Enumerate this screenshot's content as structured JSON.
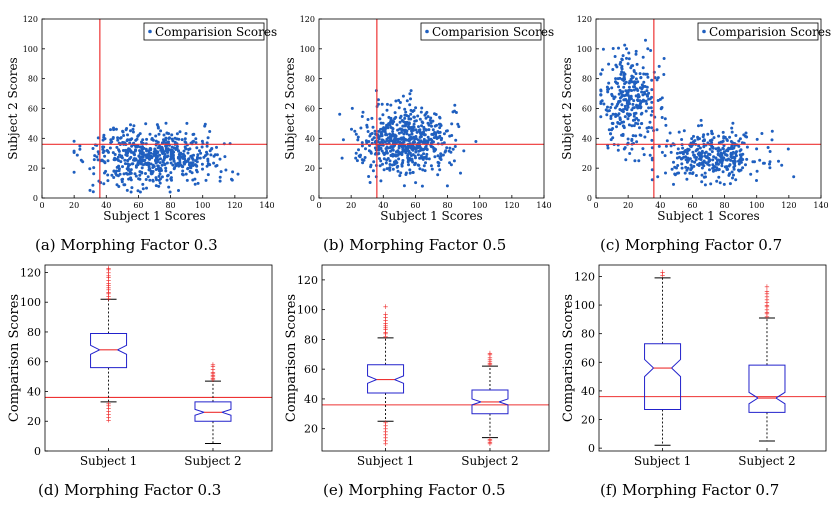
{
  "chart_data": [
    {
      "type": "scatter",
      "caption": "(a) Morphing Factor 0.3",
      "xlabel": "Subject 1 Scores",
      "ylabel": "Subject 2 Scores",
      "legend": "Comparision Scores",
      "legend_position": "top-right",
      "xlim": [
        0,
        140
      ],
      "ylim": [
        0,
        120
      ],
      "xticks": [
        0,
        20,
        40,
        60,
        80,
        100,
        120,
        140
      ],
      "yticks": [
        0,
        20,
        40,
        60,
        80,
        100,
        120
      ],
      "threshold_x": 36,
      "threshold_y": 36,
      "point_color": "#1f5fbf",
      "threshold_color": "#ee3333",
      "clusters": [
        {
          "n": 620,
          "mean_x": 68,
          "sd_x": 20,
          "mean_y": 28,
          "sd_y": 9,
          "min_x": 20,
          "max_x": 125,
          "min_y": 4,
          "max_y": 58
        }
      ]
    },
    {
      "type": "scatter",
      "caption": "(b) Morphing Factor 0.5",
      "xlabel": "Subject 1 Scores",
      "ylabel": "Subject 2 Scores",
      "legend": "Comparision Scores",
      "legend_position": "top-right",
      "xlim": [
        0,
        140
      ],
      "ylim": [
        0,
        120
      ],
      "xticks": [
        0,
        20,
        40,
        60,
        80,
        100,
        120,
        140
      ],
      "yticks": [
        0,
        20,
        40,
        60,
        80,
        100,
        120
      ],
      "threshold_x": 36,
      "threshold_y": 36,
      "point_color": "#1f5fbf",
      "threshold_color": "#ee3333",
      "clusters": [
        {
          "n": 620,
          "mean_x": 54,
          "sd_x": 14,
          "mean_y": 38,
          "sd_y": 11,
          "min_x": 10,
          "max_x": 102,
          "min_y": 8,
          "max_y": 72
        }
      ]
    },
    {
      "type": "scatter",
      "caption": "(c) Morphing Factor 0.7",
      "xlabel": "Subject 1 Scores",
      "ylabel": "Subject 2 Scores",
      "legend": "Comparision Scores",
      "legend_position": "top-right",
      "xlim": [
        0,
        140
      ],
      "ylim": [
        0,
        120
      ],
      "xticks": [
        0,
        20,
        40,
        60,
        80,
        100,
        120,
        140
      ],
      "yticks": [
        0,
        20,
        40,
        60,
        80,
        100,
        120
      ],
      "threshold_x": 36,
      "threshold_y": 36,
      "point_color": "#1f5fbf",
      "threshold_color": "#ee3333",
      "clusters": [
        {
          "n": 330,
          "mean_x": 22,
          "sd_x": 9,
          "mean_y": 65,
          "sd_y": 16,
          "min_x": 3,
          "max_x": 45,
          "min_y": 25,
          "max_y": 112
        },
        {
          "n": 360,
          "mean_x": 72,
          "sd_x": 16,
          "mean_y": 28,
          "sd_y": 8,
          "min_x": 35,
          "max_x": 125,
          "min_y": 7,
          "max_y": 52
        }
      ]
    },
    {
      "type": "box",
      "caption": "(d) Morphing Factor 0.3",
      "ylabel": "Comparison Scores",
      "categories": [
        "Subject 1",
        "Subject 2"
      ],
      "ylim": [
        0,
        125
      ],
      "yticks": [
        0,
        20,
        40,
        60,
        80,
        100,
        120
      ],
      "threshold_y": 36,
      "box_color": "#2222cc",
      "median_color": "#ee3333",
      "outlier_color": "#ee2222",
      "boxes": [
        {
          "whisker_low": 33,
          "q1": 56,
          "median": 68,
          "q3": 79,
          "whisker_high": 102,
          "notch": 3,
          "outliers": [
            102.5,
            104,
            106,
            107,
            108.5,
            110,
            111.5,
            113,
            115,
            117,
            118,
            120,
            122,
            123,
            21,
            23,
            25,
            27,
            29,
            30.5,
            32
          ]
        },
        {
          "whisker_low": 5,
          "q1": 20,
          "median": 26,
          "q3": 33,
          "whisker_high": 47,
          "notch": 2,
          "outliers": [
            48,
            49,
            50,
            51,
            52,
            53,
            55,
            57,
            58
          ]
        }
      ]
    },
    {
      "type": "box",
      "caption": "(e) Morphing Factor 0.5",
      "ylabel": "Comparison Scores",
      "categories": [
        "Subject 1",
        "Subject 2"
      ],
      "ylim": [
        5,
        130
      ],
      "yticks": [
        20,
        40,
        60,
        80,
        100,
        120
      ],
      "threshold_y": 36,
      "box_color": "#2222cc",
      "median_color": "#ee3333",
      "outlier_color": "#ee2222",
      "boxes": [
        {
          "whisker_low": 25,
          "q1": 44,
          "median": 53,
          "q3": 63,
          "whisker_high": 81,
          "notch": 2.5,
          "outliers": [
            82,
            84,
            85,
            87,
            88,
            89.5,
            91,
            93,
            95,
            97,
            102,
            10,
            12,
            14,
            16,
            18,
            20,
            22,
            24
          ]
        },
        {
          "whisker_low": 14,
          "q1": 30,
          "median": 38,
          "q3": 46,
          "whisker_high": 62,
          "notch": 2,
          "outliers": [
            63,
            64,
            65,
            66.5,
            68,
            70,
            71,
            10,
            11,
            12,
            13
          ]
        }
      ]
    },
    {
      "type": "box",
      "caption": "(f) Morphing Factor 0.7",
      "ylabel": "Comparison Scores",
      "categories": [
        "Subject 1",
        "Subject 2"
      ],
      "ylim": [
        -2,
        128
      ],
      "yticks": [
        0,
        20,
        40,
        60,
        80,
        100,
        120
      ],
      "threshold_y": 36,
      "box_color": "#2222cc",
      "median_color": "#ee3333",
      "outlier_color": "#ee2222",
      "boxes": [
        {
          "whisker_low": 2,
          "q1": 27,
          "median": 56,
          "q3": 73,
          "whisker_high": 119,
          "notch": 6,
          "outliers": [
            121,
            123
          ]
        },
        {
          "whisker_low": 5,
          "q1": 25,
          "median": 35,
          "q3": 58,
          "whisker_high": 91,
          "notch": 4,
          "outliers": [
            92,
            94,
            95,
            97,
            99,
            100,
            102,
            104,
            106,
            108,
            110,
            113
          ]
        }
      ]
    }
  ]
}
